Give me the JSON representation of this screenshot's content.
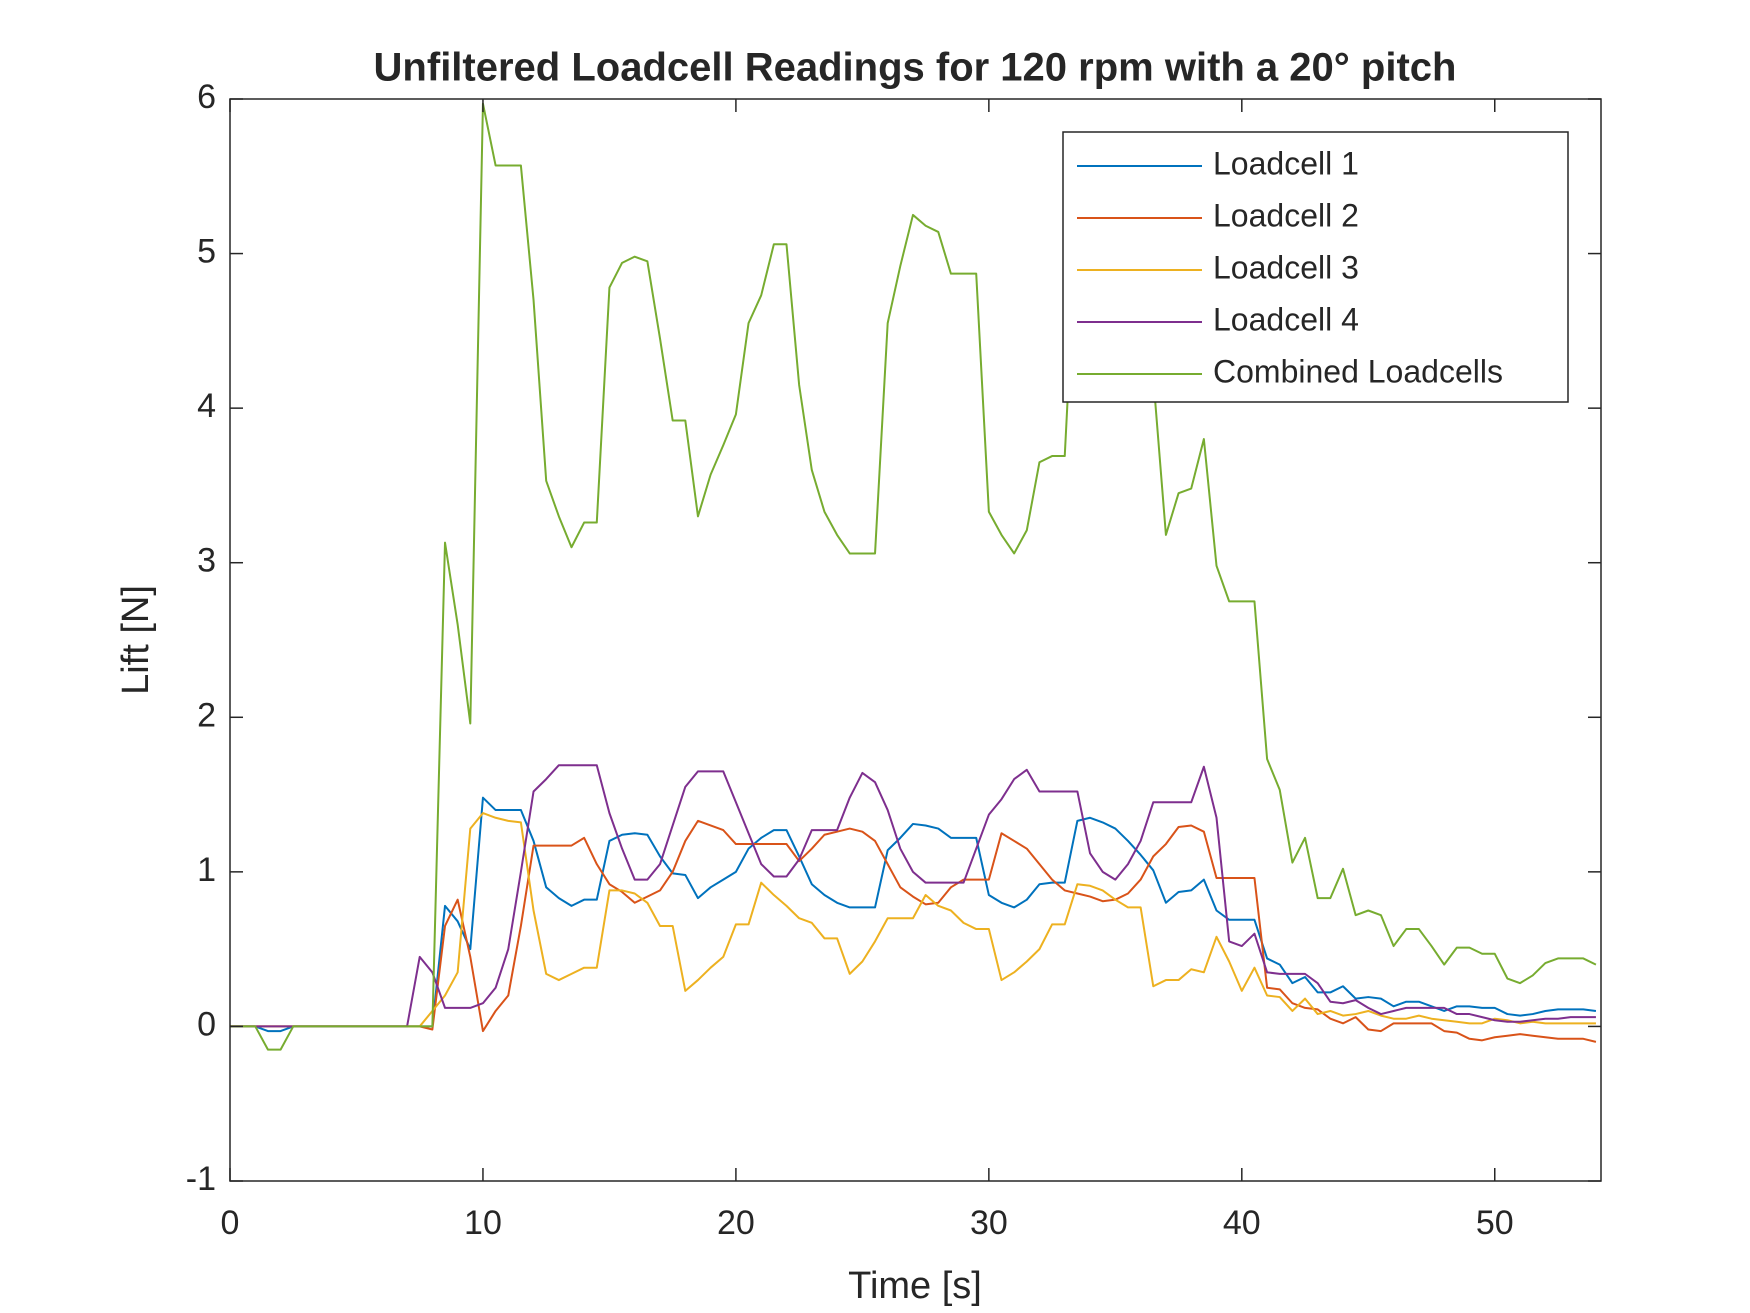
{
  "chart_data": {
    "type": "line",
    "title": "Unfiltered Loadcell Readings for 120 rpm with a 20° pitch",
    "x_label": "Time [s]",
    "y_label": "Lift [N]",
    "xlim": [
      0,
      54.2
    ],
    "ylim": [
      -1,
      6
    ],
    "xticks": [
      0,
      10,
      20,
      30,
      40,
      50
    ],
    "yticks": [
      -1,
      0,
      1,
      2,
      3,
      4,
      5,
      6
    ],
    "legend_position": "northeast",
    "x": [
      0,
      0.5,
      1,
      1.5,
      2,
      2.5,
      3,
      3.5,
      4,
      4.5,
      5,
      5.5,
      6,
      6.5,
      7,
      7.5,
      8,
      8.5,
      9,
      9.5,
      10,
      10.5,
      11,
      11.5,
      12,
      12.5,
      13,
      13.5,
      14,
      14.5,
      15,
      15.5,
      16,
      16.5,
      17,
      17.5,
      18,
      18.5,
      19,
      19.5,
      20,
      20.5,
      21,
      21.5,
      22,
      22.5,
      23,
      23.5,
      24,
      24.5,
      25,
      25.5,
      26,
      26.5,
      27,
      27.5,
      28,
      28.5,
      29,
      29.5,
      30,
      30.5,
      31,
      31.5,
      32,
      32.5,
      33,
      33.5,
      34,
      34.5,
      35,
      35.5,
      36,
      36.5,
      37,
      37.5,
      38,
      38.5,
      39,
      39.5,
      40,
      40.5,
      41,
      41.5,
      42,
      42.5,
      43,
      43.5,
      44,
      44.5,
      45,
      45.5,
      46,
      46.5,
      47,
      47.5,
      48,
      48.5,
      49,
      49.5,
      50,
      50.5,
      51,
      51.5,
      52,
      52.5,
      53,
      53.5,
      54
    ],
    "series": [
      {
        "name": "Loadcell 1",
        "color": "#0072BD",
        "values": [
          0,
          0,
          0,
          -0.03,
          -0.03,
          0,
          0,
          0,
          0,
          0,
          0,
          0,
          0,
          0,
          0,
          0,
          0,
          0.78,
          0.68,
          0.5,
          1.48,
          1.4,
          1.4,
          1.4,
          1.2,
          0.9,
          0.83,
          0.78,
          0.82,
          0.82,
          1.2,
          1.24,
          1.25,
          1.24,
          1.1,
          0.99,
          0.98,
          0.83,
          0.9,
          0.95,
          1.0,
          1.15,
          1.22,
          1.27,
          1.27,
          1.1,
          0.92,
          0.85,
          0.8,
          0.77,
          0.77,
          0.77,
          1.14,
          1.22,
          1.31,
          1.3,
          1.28,
          1.22,
          1.22,
          1.22,
          0.85,
          0.8,
          0.77,
          0.82,
          0.92,
          0.93,
          0.93,
          1.33,
          1.35,
          1.32,
          1.28,
          1.2,
          1.11,
          1.01,
          0.8,
          0.87,
          0.88,
          0.95,
          0.75,
          0.69,
          0.69,
          0.69,
          0.44,
          0.4,
          0.28,
          0.32,
          0.22,
          0.22,
          0.26,
          0.18,
          0.19,
          0.18,
          0.13,
          0.16,
          0.16,
          0.13,
          0.1,
          0.13,
          0.13,
          0.12,
          0.12,
          0.08,
          0.07,
          0.08,
          0.1,
          0.11,
          0.11,
          0.11,
          0.1
        ]
      },
      {
        "name": "Loadcell 2",
        "color": "#D95319",
        "values": [
          0,
          0,
          0,
          0,
          0,
          0,
          0,
          0,
          0,
          0,
          0,
          0,
          0,
          0,
          0,
          0,
          -0.02,
          0.65,
          0.82,
          0.45,
          -0.03,
          0.1,
          0.2,
          0.65,
          1.17,
          1.17,
          1.17,
          1.17,
          1.22,
          1.05,
          0.92,
          0.87,
          0.8,
          0.84,
          0.88,
          1.0,
          1.2,
          1.33,
          1.3,
          1.27,
          1.18,
          1.18,
          1.18,
          1.18,
          1.18,
          1.07,
          1.15,
          1.24,
          1.26,
          1.28,
          1.26,
          1.2,
          1.05,
          0.9,
          0.84,
          0.79,
          0.8,
          0.9,
          0.95,
          0.95,
          0.95,
          1.25,
          1.2,
          1.15,
          1.05,
          0.95,
          0.88,
          0.86,
          0.84,
          0.81,
          0.82,
          0.86,
          0.95,
          1.1,
          1.18,
          1.29,
          1.3,
          1.26,
          0.96,
          0.96,
          0.96,
          0.96,
          0.25,
          0.24,
          0.15,
          0.12,
          0.11,
          0.05,
          0.02,
          0.06,
          -0.02,
          -0.03,
          0.02,
          0.02,
          0.02,
          0.02,
          -0.03,
          -0.04,
          -0.08,
          -0.09,
          -0.07,
          -0.06,
          -0.05,
          -0.06,
          -0.07,
          -0.08,
          -0.08,
          -0.08,
          -0.1
        ]
      },
      {
        "name": "Loadcell 3",
        "color": "#EDB120",
        "values": [
          0,
          0,
          0,
          0,
          0,
          0,
          0,
          0,
          0,
          0,
          0,
          0,
          0,
          0,
          0,
          0,
          0.1,
          0.2,
          0.35,
          1.28,
          1.38,
          1.35,
          1.33,
          1.32,
          0.75,
          0.34,
          0.3,
          0.34,
          0.38,
          0.38,
          0.88,
          0.88,
          0.86,
          0.8,
          0.65,
          0.65,
          0.23,
          0.3,
          0.38,
          0.45,
          0.66,
          0.66,
          0.93,
          0.85,
          0.78,
          0.7,
          0.67,
          0.57,
          0.57,
          0.34,
          0.42,
          0.55,
          0.7,
          0.7,
          0.7,
          0.85,
          0.78,
          0.75,
          0.67,
          0.63,
          0.63,
          0.3,
          0.35,
          0.42,
          0.5,
          0.66,
          0.66,
          0.92,
          0.91,
          0.88,
          0.82,
          0.77,
          0.77,
          0.26,
          0.3,
          0.3,
          0.37,
          0.35,
          0.58,
          0.42,
          0.23,
          0.38,
          0.2,
          0.19,
          0.1,
          0.18,
          0.08,
          0.1,
          0.07,
          0.08,
          0.1,
          0.07,
          0.05,
          0.05,
          0.07,
          0.05,
          0.04,
          0.03,
          0.02,
          0.02,
          0.05,
          0.04,
          0.02,
          0.03,
          0.02,
          0.02,
          0.02,
          0.02,
          0.02
        ]
      },
      {
        "name": "Loadcell 4",
        "color": "#7E2F8E",
        "values": [
          0,
          0,
          0,
          0,
          0,
          0,
          0,
          0,
          0,
          0,
          0,
          0,
          0,
          0,
          0,
          0.45,
          0.35,
          0.12,
          0.12,
          0.12,
          0.15,
          0.25,
          0.5,
          1.0,
          1.52,
          1.6,
          1.69,
          1.69,
          1.69,
          1.69,
          1.38,
          1.15,
          0.95,
          0.95,
          1.05,
          1.3,
          1.55,
          1.65,
          1.65,
          1.65,
          1.45,
          1.25,
          1.05,
          0.97,
          0.97,
          1.08,
          1.27,
          1.27,
          1.27,
          1.48,
          1.64,
          1.58,
          1.4,
          1.15,
          1.0,
          0.93,
          0.93,
          0.93,
          0.93,
          1.15,
          1.37,
          1.47,
          1.6,
          1.66,
          1.52,
          1.52,
          1.52,
          1.52,
          1.12,
          1.0,
          0.95,
          1.05,
          1.2,
          1.45,
          1.45,
          1.45,
          1.45,
          1.68,
          1.35,
          0.55,
          0.52,
          0.6,
          0.35,
          0.34,
          0.34,
          0.34,
          0.28,
          0.16,
          0.15,
          0.17,
          0.12,
          0.08,
          0.1,
          0.12,
          0.12,
          0.12,
          0.12,
          0.08,
          0.08,
          0.06,
          0.04,
          0.03,
          0.03,
          0.04,
          0.05,
          0.05,
          0.06,
          0.06,
          0.06
        ]
      },
      {
        "name": "Combined Loadcells",
        "color": "#77AC30",
        "values": [
          0,
          0,
          0,
          -0.15,
          -0.15,
          0,
          0,
          0,
          0,
          0,
          0,
          0,
          0,
          0,
          0,
          0,
          0,
          3.13,
          2.6,
          1.96,
          5.97,
          5.57,
          5.57,
          5.57,
          4.7,
          3.53,
          3.3,
          3.1,
          3.26,
          3.26,
          4.78,
          4.94,
          4.98,
          4.95,
          4.45,
          3.92,
          3.92,
          3.3,
          3.57,
          3.76,
          3.96,
          4.55,
          4.73,
          5.06,
          5.06,
          4.15,
          3.6,
          3.33,
          3.18,
          3.06,
          3.06,
          3.06,
          4.55,
          4.92,
          5.25,
          5.18,
          5.14,
          4.87,
          4.87,
          4.87,
          3.33,
          3.18,
          3.06,
          3.21,
          3.65,
          3.69,
          3.69,
          5.3,
          5.4,
          5.2,
          5.0,
          4.9,
          4.6,
          4.2,
          3.18,
          3.45,
          3.48,
          3.8,
          2.98,
          2.75,
          2.75,
          2.75,
          1.73,
          1.53,
          1.06,
          1.22,
          0.83,
          0.83,
          1.02,
          0.72,
          0.75,
          0.72,
          0.52,
          0.63,
          0.63,
          0.52,
          0.4,
          0.51,
          0.51,
          0.47,
          0.47,
          0.31,
          0.28,
          0.33,
          0.41,
          0.44,
          0.44,
          0.44,
          0.4
        ]
      }
    ]
  }
}
